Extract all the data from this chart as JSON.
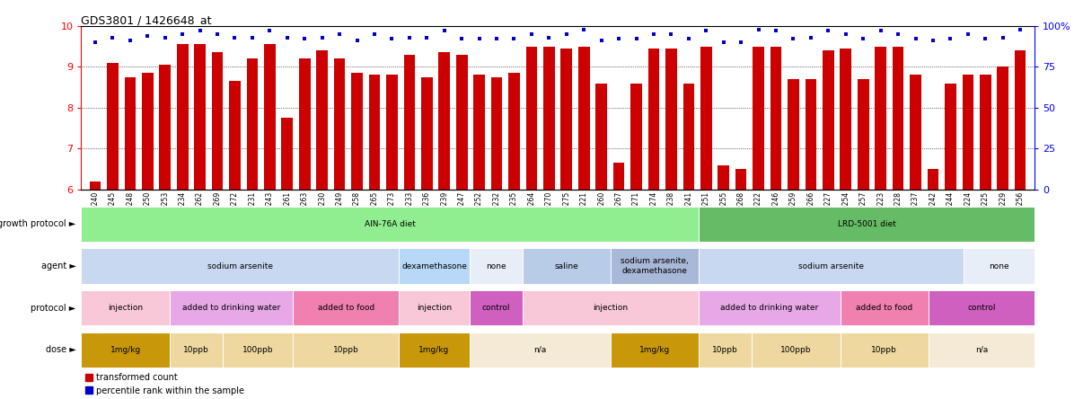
{
  "title": "GDS3801 / 1426648_at",
  "samples": [
    "GSM279240",
    "GSM279245",
    "GSM279248",
    "GSM279250",
    "GSM279253",
    "GSM279234",
    "GSM279262",
    "GSM279269",
    "GSM279272",
    "GSM279231",
    "GSM279243",
    "GSM279261",
    "GSM279263",
    "GSM279230",
    "GSM279249",
    "GSM279258",
    "GSM279265",
    "GSM279273",
    "GSM279233",
    "GSM279236",
    "GSM279239",
    "GSM279247",
    "GSM279252",
    "GSM279232",
    "GSM279235",
    "GSM279264",
    "GSM279270",
    "GSM279275",
    "GSM279221",
    "GSM279260",
    "GSM279267",
    "GSM279271",
    "GSM279274",
    "GSM279238",
    "GSM279241",
    "GSM279251",
    "GSM279255",
    "GSM279268",
    "GSM279222",
    "GSM279246",
    "GSM279259",
    "GSM279266",
    "GSM279227",
    "GSM279254",
    "GSM279257",
    "GSM279223",
    "GSM279228",
    "GSM279237",
    "GSM279242",
    "GSM279244",
    "GSM279224",
    "GSM279225",
    "GSM279229",
    "GSM279256"
  ],
  "bar_values": [
    6.2,
    9.1,
    8.75,
    8.85,
    9.05,
    9.55,
    9.55,
    9.35,
    8.65,
    9.2,
    9.55,
    7.75,
    9.2,
    9.4,
    9.2,
    8.85,
    8.8,
    8.8,
    9.3,
    8.75,
    9.35,
    9.3,
    8.8,
    8.75,
    8.85,
    9.5,
    9.5,
    9.45,
    9.5,
    8.6,
    6.65,
    8.6,
    9.45,
    9.45,
    8.6,
    9.5,
    6.6,
    6.5,
    9.5,
    9.5,
    8.7,
    8.7,
    9.4,
    9.45,
    8.7,
    9.5,
    9.5,
    8.8,
    6.5,
    8.6,
    8.8,
    8.8,
    9.0,
    9.4
  ],
  "percentile_pct": [
    90,
    93,
    91,
    94,
    93,
    95,
    97,
    95,
    93,
    93,
    97,
    93,
    92,
    93,
    95,
    91,
    95,
    92,
    93,
    93,
    97,
    92,
    92,
    92,
    92,
    95,
    93,
    95,
    98,
    91,
    92,
    92,
    95,
    95,
    92,
    97,
    90,
    90,
    98,
    97,
    92,
    93,
    97,
    95,
    92,
    97,
    95,
    92,
    91,
    92,
    95,
    92,
    93,
    98
  ],
  "ylim_left": [
    6,
    10
  ],
  "ylim_right": [
    0,
    100
  ],
  "yticks_left": [
    6,
    7,
    8,
    9,
    10
  ],
  "yticks_right": [
    0,
    25,
    50,
    75,
    100
  ],
  "bar_color": "#CC0000",
  "dot_color": "#0000CC",
  "growth_protocol_row": {
    "label": "growth protocol",
    "segments": [
      {
        "text": "AIN-76A diet",
        "start": 0,
        "end": 35,
        "color": "#90EE90"
      },
      {
        "text": "LRD-5001 diet",
        "start": 35,
        "end": 54,
        "color": "#66BB66"
      }
    ]
  },
  "agent_row": {
    "label": "agent",
    "segments": [
      {
        "text": "sodium arsenite",
        "start": 0,
        "end": 18,
        "color": "#C8D8F0"
      },
      {
        "text": "dexamethasone",
        "start": 18,
        "end": 22,
        "color": "#B8D8F8"
      },
      {
        "text": "none",
        "start": 22,
        "end": 25,
        "color": "#E8EEF8"
      },
      {
        "text": "saline",
        "start": 25,
        "end": 30,
        "color": "#B8CCE8"
      },
      {
        "text": "sodium arsenite,\ndexamethasone",
        "start": 30,
        "end": 35,
        "color": "#A8B8D8"
      },
      {
        "text": "sodium arsenite",
        "start": 35,
        "end": 50,
        "color": "#C8D8F0"
      },
      {
        "text": "none",
        "start": 50,
        "end": 54,
        "color": "#E8EEF8"
      }
    ]
  },
  "protocol_row": {
    "label": "protocol",
    "segments": [
      {
        "text": "injection",
        "start": 0,
        "end": 5,
        "color": "#F8C8D8"
      },
      {
        "text": "added to drinking water",
        "start": 5,
        "end": 12,
        "color": "#E8A8E8"
      },
      {
        "text": "added to food",
        "start": 12,
        "end": 18,
        "color": "#F080B0"
      },
      {
        "text": "injection",
        "start": 18,
        "end": 22,
        "color": "#F8C8D8"
      },
      {
        "text": "control",
        "start": 22,
        "end": 25,
        "color": "#D060C0"
      },
      {
        "text": "injection",
        "start": 25,
        "end": 35,
        "color": "#F8C8D8"
      },
      {
        "text": "added to drinking water",
        "start": 35,
        "end": 43,
        "color": "#E8A8E8"
      },
      {
        "text": "added to food",
        "start": 43,
        "end": 48,
        "color": "#F080B0"
      },
      {
        "text": "control",
        "start": 48,
        "end": 54,
        "color": "#D060C0"
      }
    ]
  },
  "dose_row": {
    "label": "dose",
    "segments": [
      {
        "text": "1mg/kg",
        "start": 0,
        "end": 5,
        "color": "#C8980A"
      },
      {
        "text": "10ppb",
        "start": 5,
        "end": 8,
        "color": "#EED8A0"
      },
      {
        "text": "100ppb",
        "start": 8,
        "end": 12,
        "color": "#EED8A0"
      },
      {
        "text": "10ppb",
        "start": 12,
        "end": 18,
        "color": "#EED8A0"
      },
      {
        "text": "1mg/kg",
        "start": 18,
        "end": 22,
        "color": "#C8980A"
      },
      {
        "text": "n/a",
        "start": 22,
        "end": 30,
        "color": "#F5EAD5"
      },
      {
        "text": "1mg/kg",
        "start": 30,
        "end": 35,
        "color": "#C8980A"
      },
      {
        "text": "10ppb",
        "start": 35,
        "end": 38,
        "color": "#EED8A0"
      },
      {
        "text": "100ppb",
        "start": 38,
        "end": 43,
        "color": "#EED8A0"
      },
      {
        "text": "10ppb",
        "start": 43,
        "end": 48,
        "color": "#EED8A0"
      },
      {
        "text": "n/a",
        "start": 48,
        "end": 54,
        "color": "#F5EAD5"
      }
    ]
  },
  "legend": [
    {
      "label": "transformed count",
      "color": "#CC0000"
    },
    {
      "label": "percentile rank within the sample",
      "color": "#0000CC"
    }
  ]
}
